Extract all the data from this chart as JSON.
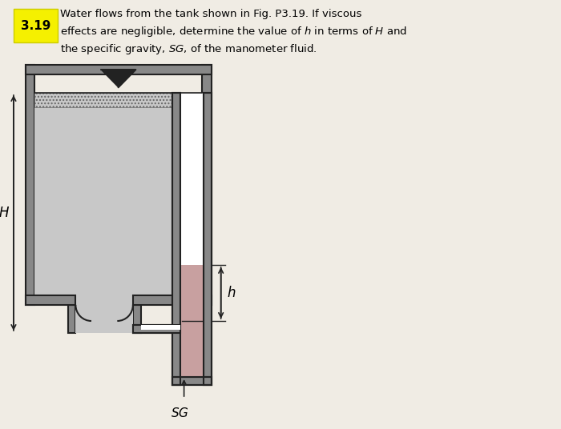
{
  "title_num": "3.19",
  "title_text": "Water flows from the tank shown in Fig. P3.19. If viscous\neffects are negligible, determine the value of $h$ in terms of $H$ and\nthe specific gravity, $SG$, of the manometer fluid.",
  "bg_color": "#f0ece4",
  "tank_color": "#b0b0b0",
  "tank_dark": "#888888",
  "water_color": "#c8c8c8",
  "water_hatch": "...",
  "manometer_fluid_color": "#c8a0a0",
  "pipe_color": "#a0a0a0",
  "line_color": "#222222",
  "label_H": "H",
  "label_h": "h",
  "label_SG": "SG"
}
